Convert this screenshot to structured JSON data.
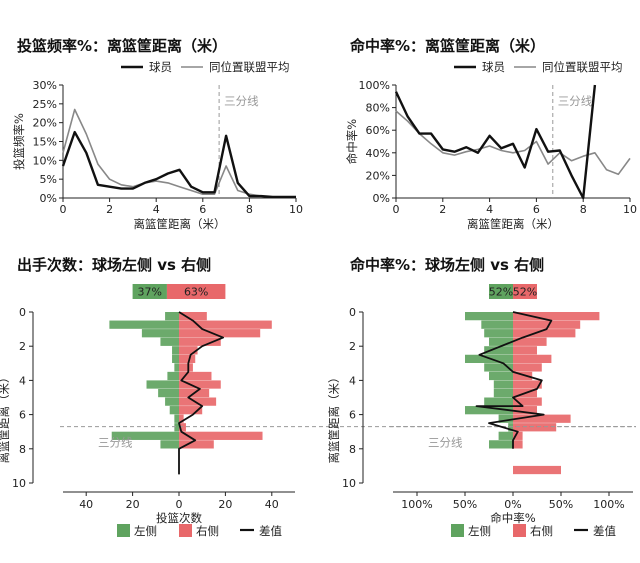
{
  "legend_bottom": {
    "left_label": "左侧",
    "right_label": "右侧",
    "diff_label": "差值"
  },
  "colors": {
    "left": "#5fa35f",
    "right": "#e8686a",
    "player": "#111111",
    "league": "#888888",
    "ref": "#999999"
  },
  "chart_data": [
    {
      "id": "freq",
      "type": "line",
      "title": "投篮频率%：离篮筐距离（米）",
      "xlabel": "离篮筐距离（米）",
      "ylabel": "投篮频率%",
      "xlim": [
        0,
        10
      ],
      "ylim": [
        0,
        30
      ],
      "xticks": [
        0,
        2,
        4,
        6,
        8,
        10
      ],
      "yticks": [
        0,
        5,
        10,
        15,
        20,
        25,
        30
      ],
      "ytick_suffix": "%",
      "annotation": "三分线",
      "ref_x": 6.7,
      "series": [
        {
          "name": "球员",
          "x": [
            0,
            0.5,
            1,
            1.5,
            2,
            2.5,
            3,
            3.5,
            4,
            4.5,
            5,
            5.5,
            6,
            6.5,
            7,
            7.5,
            8,
            8.5,
            9,
            9.5,
            10
          ],
          "y": [
            8.5,
            17.5,
            12,
            3.5,
            3,
            2.5,
            2.5,
            4,
            5,
            6.5,
            7.5,
            3,
            1.5,
            1.5,
            16.5,
            4,
            0.5,
            0.5,
            0.3,
            0.3,
            0.3
          ]
        },
        {
          "name": "同位置联盟平均",
          "x": [
            0,
            0.5,
            1,
            1.5,
            2,
            2.5,
            3,
            3.5,
            4,
            4.5,
            5,
            5.5,
            6,
            6.5,
            7,
            7.5,
            8,
            8.5,
            9,
            9.5,
            10
          ],
          "y": [
            12,
            23.5,
            17,
            9,
            5,
            3.5,
            3,
            4,
            4.5,
            4,
            3,
            2,
            1,
            1,
            8.5,
            2,
            1,
            0.5,
            0.3,
            0.2,
            0.2
          ]
        }
      ]
    },
    {
      "id": "acc",
      "type": "line",
      "title": "命中率%：离篮筐距离（米）",
      "xlabel": "离篮筐距离（米）",
      "ylabel": "命中率%",
      "xlim": [
        0,
        10
      ],
      "ylim": [
        0,
        100
      ],
      "xticks": [
        0,
        2,
        4,
        6,
        8,
        10
      ],
      "yticks": [
        0,
        20,
        40,
        60,
        80,
        100
      ],
      "ytick_suffix": "%",
      "annotation": "三分线",
      "ref_x": 6.7,
      "series": [
        {
          "name": "球员",
          "x": [
            0,
            0.5,
            1,
            1.5,
            2,
            2.5,
            3,
            3.5,
            4,
            4.5,
            5,
            5.5,
            6,
            6.5,
            7,
            7.5,
            8,
            8.5
          ],
          "y": [
            94,
            72,
            57,
            57,
            43,
            41,
            45,
            40,
            55,
            44,
            48,
            27,
            61,
            41,
            42,
            20,
            0,
            100
          ]
        },
        {
          "name": "同位置联盟平均",
          "x": [
            0,
            0.5,
            1,
            1.5,
            2,
            2.5,
            3,
            3.5,
            4,
            4.5,
            5,
            5.5,
            6,
            6.5,
            7,
            7.5,
            8,
            8.5,
            9,
            9.5,
            10
          ],
          "y": [
            77,
            68,
            57,
            48,
            40,
            38,
            41,
            43,
            46,
            42,
            40,
            42,
            50,
            30,
            40,
            33,
            37,
            40,
            25,
            21,
            35
          ]
        }
      ]
    },
    {
      "id": "count",
      "type": "bar",
      "title": "出手次数：球场左侧 vs 右侧",
      "xlabel": "投篮次数",
      "ylabel": "离篮筐距离（米）",
      "xlim": [
        -50,
        50
      ],
      "ylim": [
        0,
        10
      ],
      "xticks": [
        -40,
        -20,
        0,
        20,
        40
      ],
      "xtick_labels": [
        "40",
        "20",
        "0",
        "20",
        "40"
      ],
      "yticks": [
        0,
        2,
        4,
        6,
        8,
        10
      ],
      "annotation": "三分线",
      "ref_y": 6.7,
      "summary": {
        "left": 37,
        "right": 63,
        "suffix": "%"
      },
      "bins": [
        0,
        0.5,
        1,
        1.5,
        2,
        2.5,
        3,
        3.5,
        4,
        4.5,
        5,
        5.5,
        6,
        6.5,
        7,
        7.5,
        8,
        8.5,
        9,
        9.5
      ],
      "left_values": [
        6,
        30,
        16,
        8,
        3,
        3,
        2,
        5,
        14,
        9,
        6,
        4,
        2,
        2,
        29,
        8,
        0,
        0,
        0,
        0
      ],
      "right_values": [
        12,
        40,
        35,
        18,
        8,
        7,
        6,
        14,
        18,
        13,
        16,
        10,
        2,
        3,
        36,
        15,
        0,
        0,
        0,
        0
      ],
      "diff_x": [
        0,
        6,
        10,
        19,
        10,
        5,
        4,
        4,
        1,
        9,
        4,
        10,
        6,
        0,
        1,
        7,
        0,
        0,
        0
      ],
      "diff_y": [
        0,
        0.5,
        1,
        1.5,
        2,
        2.5,
        3,
        3.5,
        4,
        4.5,
        5,
        5.5,
        6,
        6.5,
        7,
        7.5,
        8,
        8.5,
        9.5
      ]
    },
    {
      "id": "pct",
      "type": "bar",
      "title": "命中率%：球场左侧 vs 右侧",
      "xlabel": "命中率%",
      "ylabel": "离篮筐距离（米）",
      "xlim": [
        -125,
        125
      ],
      "ylim": [
        0,
        10
      ],
      "xticks": [
        -100,
        -50,
        0,
        50,
        100
      ],
      "xtick_labels": [
        "100%",
        "50%",
        "0%",
        "50%",
        "100%"
      ],
      "yticks": [
        0,
        2,
        4,
        6,
        8,
        10
      ],
      "annotation": "三分线",
      "ref_y": 6.7,
      "summary": {
        "left": 52,
        "right": 52,
        "suffix": "%"
      },
      "bins": [
        0,
        0.5,
        1,
        1.5,
        2,
        2.5,
        3,
        3.5,
        4,
        4.5,
        5,
        5.5,
        6,
        6.5,
        7,
        7.5,
        8,
        8.5,
        9,
        9.5
      ],
      "left_values": [
        50,
        33,
        30,
        25,
        30,
        50,
        30,
        25,
        20,
        20,
        30,
        50,
        15,
        5,
        15,
        25,
        0,
        0,
        0,
        0
      ],
      "right_values": [
        90,
        70,
        65,
        35,
        25,
        40,
        30,
        20,
        30,
        25,
        30,
        25,
        60,
        45,
        10,
        10,
        0,
        0,
        50,
        0
      ],
      "diff_x": [
        0,
        40,
        35,
        10,
        -35,
        -10,
        0,
        30,
        25,
        0,
        10,
        -38,
        32,
        -25,
        5,
        0,
        0
      ],
      "diff_y": [
        0,
        0.5,
        1,
        1.5,
        2.5,
        3,
        3.5,
        4,
        4.5,
        5,
        5.5,
        5.5,
        6,
        6.5,
        7,
        7.5,
        8
      ]
    }
  ]
}
